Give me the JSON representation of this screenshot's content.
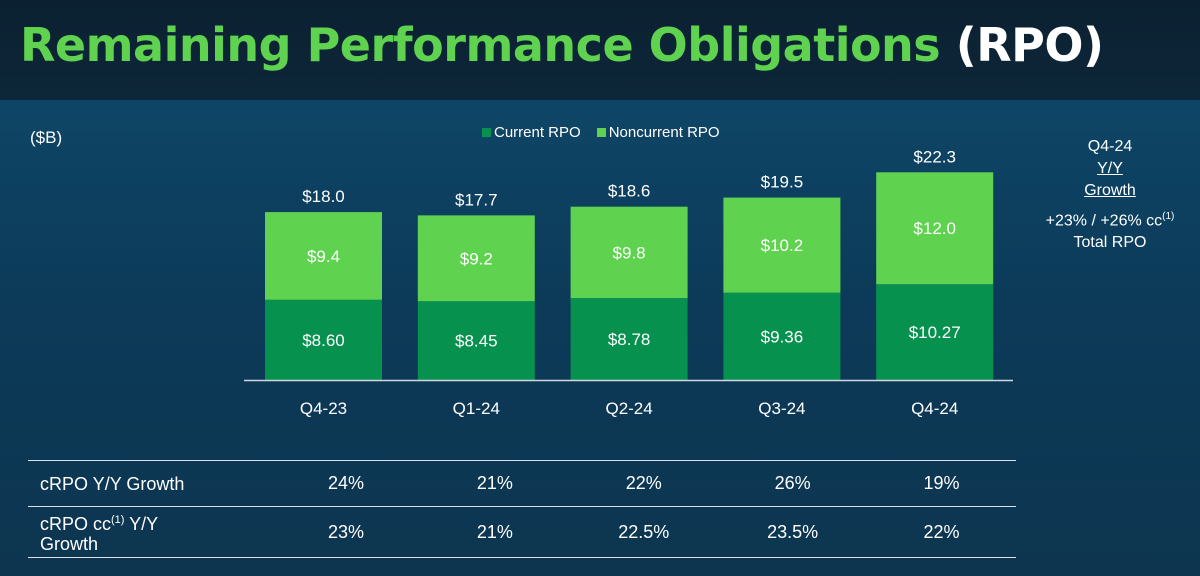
{
  "header": {
    "title_main": "Remaining Performance Obligations",
    "title_paren": "(RPO)"
  },
  "unit_label": "($B)",
  "legend": {
    "current": "Current RPO",
    "noncurrent": "Noncurrent RPO"
  },
  "colors": {
    "current": "#07914f",
    "noncurrent": "#5fd34f",
    "title_green": "#5fd34f"
  },
  "chart_data": {
    "type": "bar",
    "stacked": true,
    "categories": [
      "Q4-23",
      "Q1-24",
      "Q2-24",
      "Q3-24",
      "Q4-24"
    ],
    "series": [
      {
        "name": "Current RPO",
        "values": [
          8.6,
          8.45,
          8.78,
          9.36,
          10.27
        ],
        "labels": [
          "$8.60",
          "$8.45",
          "$8.78",
          "$9.36",
          "$10.27"
        ]
      },
      {
        "name": "Noncurrent RPO",
        "values": [
          9.4,
          9.2,
          9.8,
          10.2,
          12.0
        ],
        "labels": [
          "$9.4",
          "$9.2",
          "$9.8",
          "$10.2",
          "$12.0"
        ]
      }
    ],
    "totals": [
      18.0,
      17.7,
      18.6,
      19.5,
      22.3
    ],
    "total_labels": [
      "$18.0",
      "$17.7",
      "$18.6",
      "$19.5",
      "$22.3"
    ],
    "ylim": [
      0,
      22.3
    ],
    "legend_position": "top-center",
    "grid": false
  },
  "growth_box": {
    "line1": "Q4-24",
    "line2": "Y/Y",
    "line3": "Growth",
    "line4": "+23% / +26% cc",
    "line4_sup": "(1)",
    "line5": "Total RPO"
  },
  "table": {
    "row1_label": "cRPO Y/Y Growth",
    "row1_values": [
      "24%",
      "21%",
      "22%",
      "26%",
      "19%"
    ],
    "row2_label_a": "cRPO cc",
    "row2_label_sup": "(1)",
    "row2_label_b": " Y/Y",
    "row2_label_c": "Growth",
    "row2_values": [
      "23%",
      "21%",
      "22.5%",
      "23.5%",
      "22%"
    ]
  }
}
